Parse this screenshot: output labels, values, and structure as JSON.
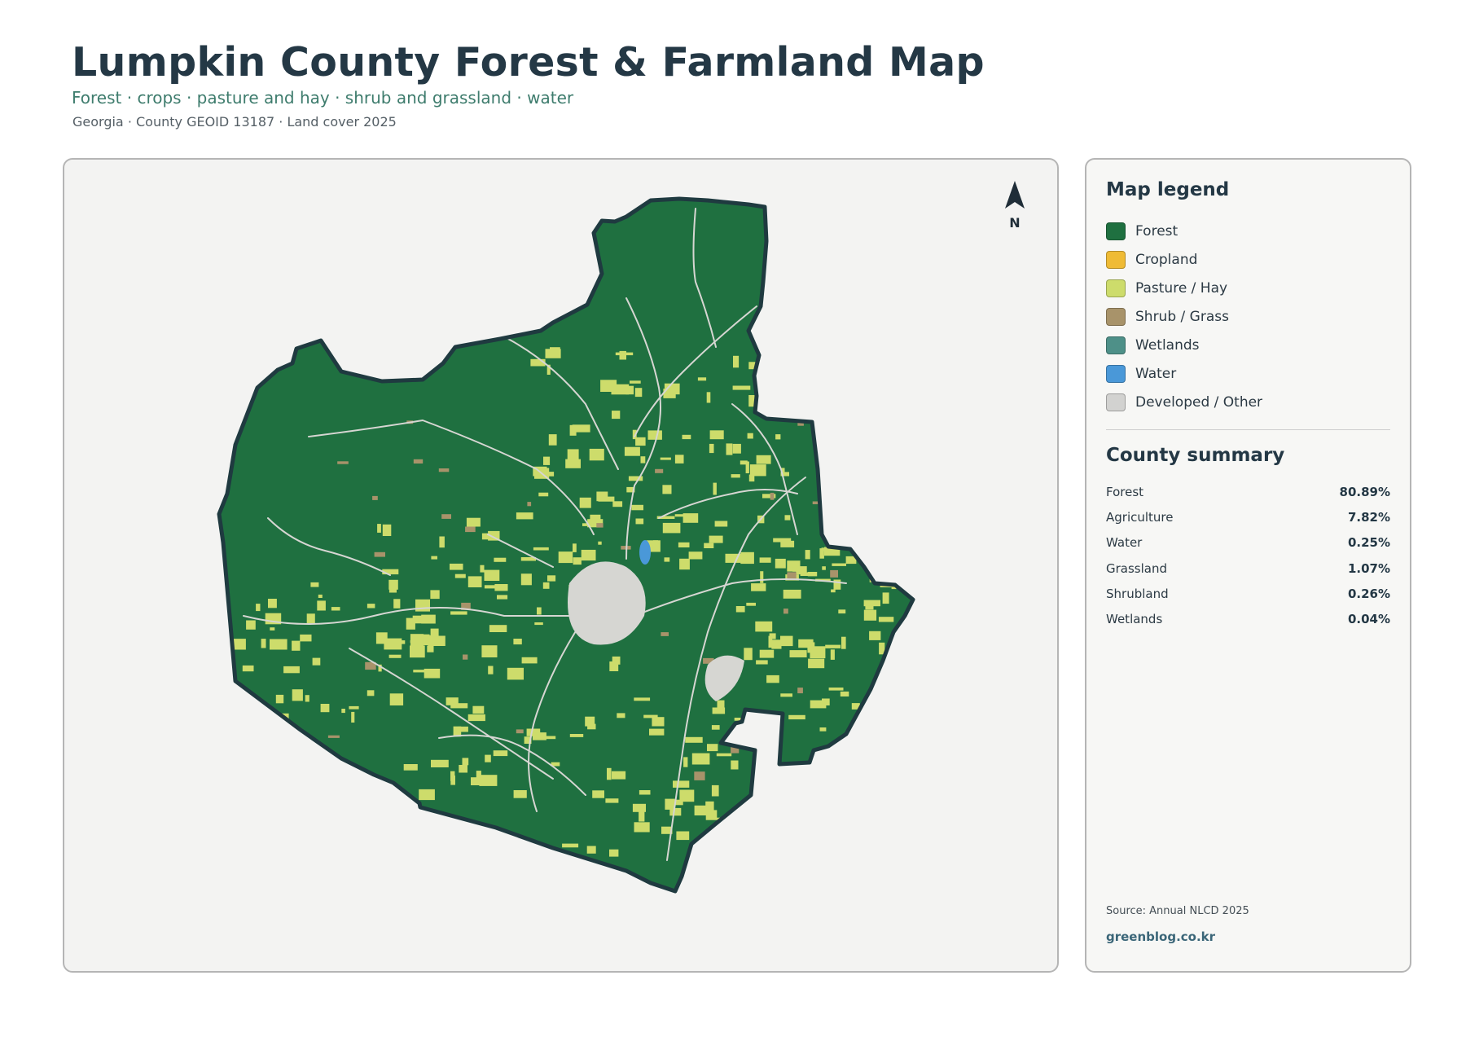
{
  "header": {
    "title": "Lumpkin County Forest & Farmland Map",
    "subtitle": "Forest · crops · pasture and hay · shrub and grassland · water",
    "meta": "Georgia · County GEOID 13187 · Land cover 2025"
  },
  "map": {
    "north_label": "N",
    "colors": {
      "forest": "#1f7040",
      "pasture": "#cddc6b",
      "shrub": "#a8936a",
      "water": "#4a98d8",
      "developed": "#d6d6d2",
      "border": "#1f3a40",
      "background": "#f3f3f2"
    }
  },
  "legend": {
    "heading": "Map legend",
    "items": [
      {
        "label": "Forest",
        "color": "#1f7040"
      },
      {
        "label": "Cropland",
        "color": "#efbb35"
      },
      {
        "label": "Pasture / Hay",
        "color": "#cddc6b"
      },
      {
        "label": "Shrub / Grass",
        "color": "#a8936a"
      },
      {
        "label": "Wetlands",
        "color": "#4e9088"
      },
      {
        "label": "Water",
        "color": "#4a98d8"
      },
      {
        "label": "Developed / Other",
        "color": "#d2d2d0"
      }
    ]
  },
  "summary": {
    "heading": "County summary",
    "rows": [
      {
        "label": "Forest",
        "value": "80.89%"
      },
      {
        "label": "Agriculture",
        "value": "7.82%"
      },
      {
        "label": "Water",
        "value": "0.25%"
      },
      {
        "label": "Grassland",
        "value": "1.07%"
      },
      {
        "label": "Shrubland",
        "value": "0.26%"
      },
      {
        "label": "Wetlands",
        "value": "0.04%"
      }
    ]
  },
  "footer": {
    "source": "Source: Annual NLCD 2025",
    "credit": "greenblog.co.kr"
  }
}
